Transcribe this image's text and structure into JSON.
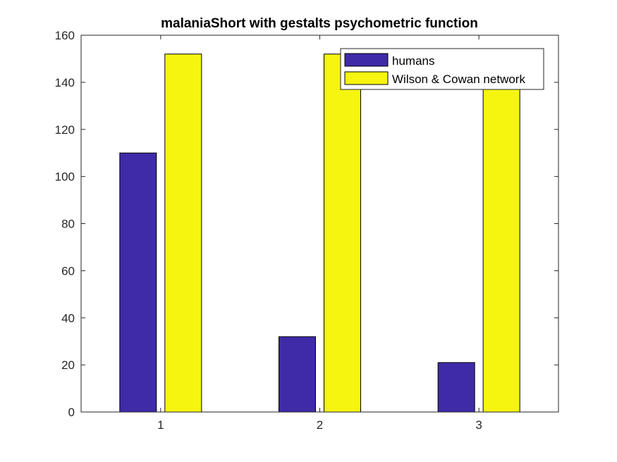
{
  "chart_data": {
    "type": "bar",
    "title": "malaniaShort with gestalts psychometric function",
    "xlabel": "",
    "ylabel": "",
    "categories": [
      "1",
      "2",
      "3"
    ],
    "ylim": [
      0,
      160
    ],
    "yticks": [
      "0",
      "20",
      "40",
      "60",
      "80",
      "100",
      "120",
      "140",
      "160"
    ],
    "grid": false,
    "legend_position": "top-right",
    "series": [
      {
        "name": "humans",
        "values": [
          110,
          32,
          21
        ],
        "color": "#3f2aa8"
      },
      {
        "name": "Wilson & Cowan network",
        "values": [
          152,
          152,
          152
        ],
        "color": "#f5f50f"
      }
    ]
  }
}
